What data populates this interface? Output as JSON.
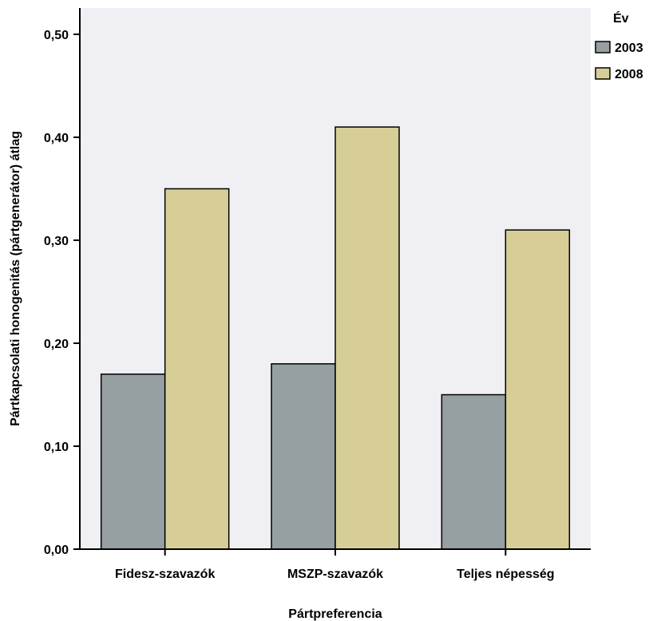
{
  "chart_data": {
    "type": "bar",
    "title": "",
    "xlabel": "Pártpreferencia",
    "ylabel": "Pártkapcsolati honogenitás (pártgenerátor) átlag",
    "categories": [
      "Fidesz-szavazók",
      "MSZP-szavazók",
      "Teljes népesség"
    ],
    "series": [
      {
        "name": "2003",
        "values": [
          0.17,
          0.18,
          0.15
        ]
      },
      {
        "name": "2008",
        "values": [
          0.35,
          0.41,
          0.31
        ]
      }
    ],
    "ylim": [
      0,
      0.52
    ],
    "yticks": [
      0.0,
      0.1,
      0.2,
      0.3,
      0.4,
      0.5
    ],
    "ytick_labels": [
      "0,00",
      "0,10",
      "0,20",
      "0,30",
      "0,40",
      "0,50"
    ],
    "grid": false,
    "legend": {
      "title": "Év",
      "position": "top-right"
    },
    "colors": {
      "2003": "#969fa1",
      "2008": "#d6ce96",
      "plot_background": "#f0f0f4"
    }
  }
}
